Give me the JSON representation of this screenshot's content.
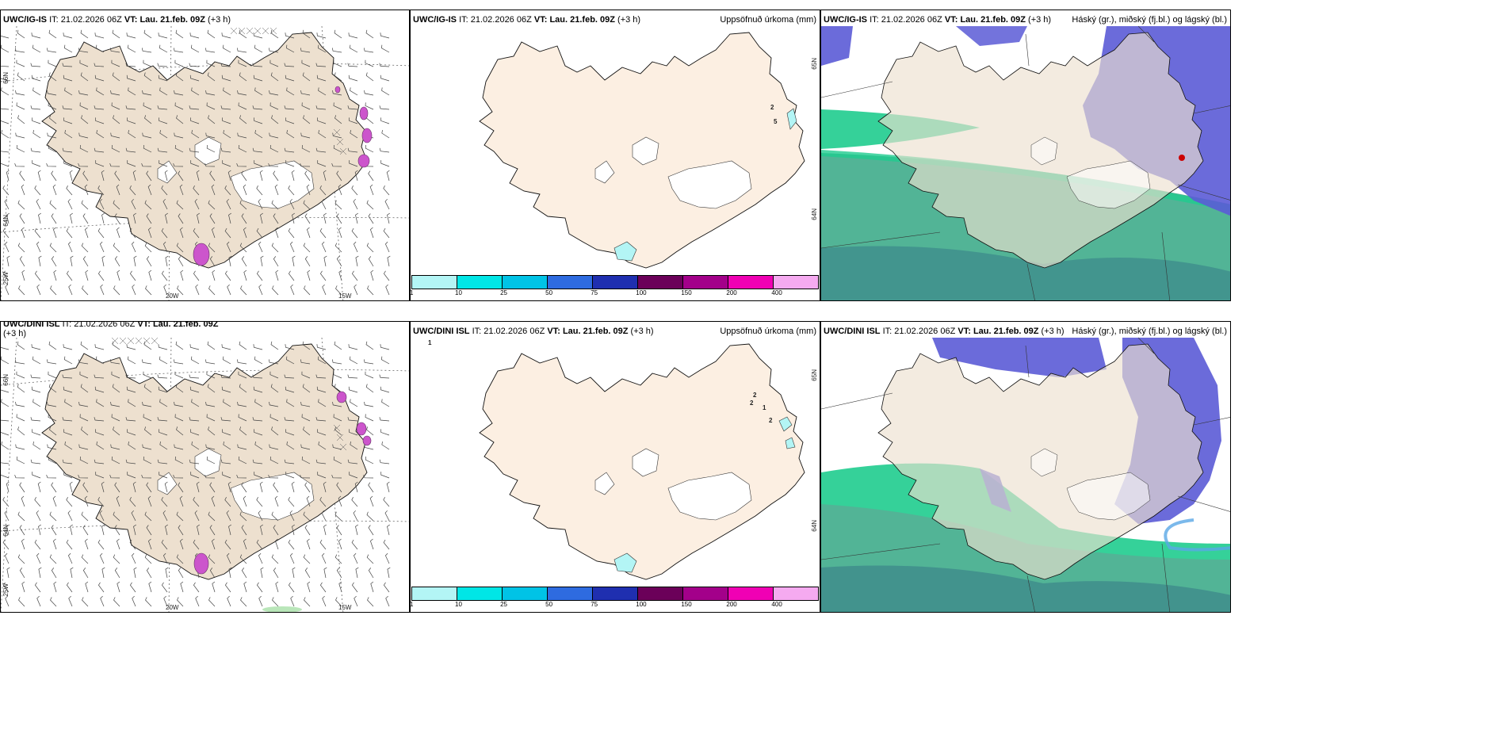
{
  "panels": [
    {
      "model": "UWC/IG-IS",
      "it_label": "IT:",
      "it_value": "21.02.2026 06Z",
      "vt_label": "VT:",
      "vt_value": "Lau. 21.feb. 09Z",
      "lead": "(+3 h)",
      "right_title": "",
      "lat_labels": [
        "66N",
        "64N",
        "25W"
      ],
      "lon_labels": [
        "20W",
        "15W"
      ]
    },
    {
      "model": "UWC/IG-IS",
      "it_label": "IT:",
      "it_value": "21.02.2026 06Z",
      "vt_label": "VT:",
      "vt_value": "Lau. 21.feb. 09Z",
      "lead": "(+3 h)",
      "right_title": "Uppsöfnuð úrkoma (mm)",
      "lat_labels": [
        "65N",
        "64N"
      ],
      "contour_labels": [
        "2",
        "5"
      ]
    },
    {
      "model": "UWC/IG-IS",
      "it_label": "IT:",
      "it_value": "21.02.2026 06Z",
      "vt_label": "VT:",
      "vt_value": "Lau. 21.feb. 09Z",
      "lead": "(+3 h)",
      "right_title": "Háský (gr.), miðský (fj.bl.) og lágský (bl.)"
    },
    {
      "model": "UWC/DINI ISL",
      "it_label": "IT:",
      "it_value": "21.02.2026 06Z",
      "vt_label": "VT:",
      "vt_value": "Lau. 21.feb. 09Z",
      "lead": "(+3 h)",
      "right_title": "",
      "lat_labels": [
        "66N",
        "64N",
        "25W"
      ],
      "lon_labels": [
        "20W",
        "15W"
      ]
    },
    {
      "model": "UWC/DINI ISL",
      "it_label": "IT:",
      "it_value": "21.02.2026 06Z",
      "vt_label": "VT:",
      "vt_value": "Lau. 21.feb. 09Z",
      "lead": "(+3 h)",
      "right_title": "Uppsöfnuð úrkoma (mm)",
      "lat_labels": [
        "65N",
        "64N"
      ],
      "contour_labels": [
        "1",
        "2",
        "2",
        "1",
        "2"
      ]
    },
    {
      "model": "UWC/DINI ISL",
      "it_label": "IT:",
      "it_value": "21.02.2026 06Z",
      "vt_label": "VT:",
      "vt_value": "Lau. 21.feb. 09Z",
      "lead": "(+3 h)",
      "right_title": "Háský (gr.), miðský (fj.bl.) og lágský (bl.)"
    }
  ],
  "colorbar": {
    "ticks": [
      "1",
      "10",
      "25",
      "50",
      "75",
      "100",
      "150",
      "200",
      "400"
    ],
    "colors": [
      "#b3f5f5",
      "#00e6e6",
      "#00c3e6",
      "#2e6be0",
      "#1f2fb0",
      "#6b0059",
      "#a3008a",
      "#f000b4",
      "#f5aaf0"
    ]
  },
  "colors": {
    "land_wind": "#ede0cf",
    "land_precip": "#fcefe2",
    "high_cloud": "#1fcc8e",
    "mid_cloud": "#3d5fb8",
    "low_cloud": "#5b5bd6",
    "precip_magenta": "#cc55cc"
  }
}
